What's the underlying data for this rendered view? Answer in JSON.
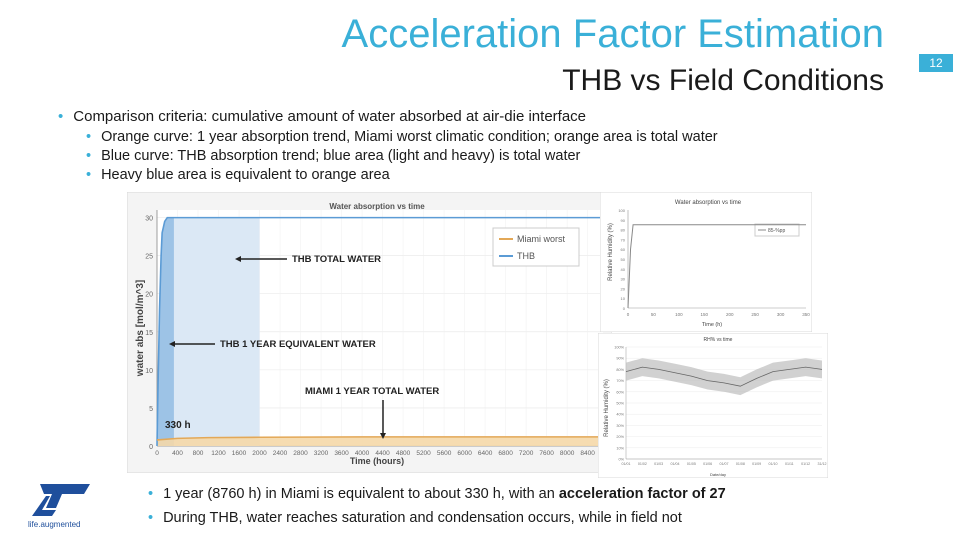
{
  "header": {
    "title": "Acceleration Factor Estimation",
    "subtitle": "THB vs Field Conditions",
    "page_number": "12"
  },
  "bullets": {
    "main": "Comparison criteria: cumulative amount of water absorbed at air-die interface",
    "sub": [
      "Orange curve: 1 year absorption trend, Miami worst climatic condition; orange area is total water",
      "Blue curve: THB absorption trend; blue area (light and heavy) is total water",
      "Heavy blue area is equivalent to orange area"
    ]
  },
  "bottom_bullets": {
    "line1_prefix": "1 year (8760 h) in Miami is equivalent to about 330 h, with an ",
    "line1_bold": "acceleration factor of 27",
    "line2": "During THB, water reaches saturation and condensation occurs, while in field not"
  },
  "logo": {
    "text": "life.augmented"
  },
  "colors": {
    "accent": "#3ab0d8",
    "thb_blue": "#5b9bd5",
    "miami_orange": "#e3a857"
  },
  "chart_data": [
    {
      "type": "line",
      "title": "Water absorption vs time",
      "xlabel": "Time (hours)",
      "ylabel": "water abs [mol/m^3]",
      "x_ticks": [
        "0",
        "400",
        "800",
        "1200",
        "1600",
        "2000",
        "2400",
        "2800",
        "3200",
        "3600",
        "4000",
        "4400",
        "4800",
        "5200",
        "5600",
        "6000",
        "6400",
        "6800",
        "7200",
        "7600",
        "8000",
        "8400"
      ],
      "y_ticks": [
        "0",
        "5",
        "10",
        "15",
        "20",
        "25",
        "30"
      ],
      "xlim": [
        0,
        8700
      ],
      "ylim": [
        0,
        31
      ],
      "legend": {
        "placement": "top-right",
        "entries": [
          "Miami worst",
          "THB"
        ]
      },
      "series": [
        {
          "name": "THB",
          "x": [
            0,
            20,
            50,
            80,
            100,
            150,
            200,
            8700
          ],
          "y": [
            0,
            8,
            18,
            25,
            28,
            29.5,
            30,
            30
          ]
        },
        {
          "name": "Miami worst",
          "x": [
            0,
            400,
            1000,
            2000,
            4000,
            6000,
            8760
          ],
          "y": [
            0.8,
            1.0,
            1.1,
            1.15,
            1.2,
            1.2,
            1.2
          ]
        }
      ],
      "annotations": {
        "thb_total": "THB TOTAL WATER",
        "thb_equivalent": "THB 1 YEAR EQUIVALENT  WATER",
        "miami_total": "MIAMI 1 YEAR TOTAL WATER",
        "hours_marker": "330 h"
      },
      "grid": true
    },
    {
      "type": "line",
      "title": "Water absorption vs time",
      "xlabel": "Time (h)",
      "ylabel": "Relative Humidity (%)",
      "legend": {
        "placement": "top-right",
        "entries": [
          "85-%pp"
        ]
      },
      "x_ticks": [
        "0",
        "50",
        "100",
        "150",
        "200",
        "250",
        "300",
        "350"
      ],
      "y_ticks": [
        "0",
        "10",
        "20",
        "30",
        "40",
        "50",
        "60",
        "70",
        "80",
        "90",
        "100"
      ],
      "xlim": [
        0,
        350
      ],
      "ylim": [
        0,
        100
      ],
      "series": [
        {
          "name": "85-%pp",
          "x": [
            0,
            5,
            10,
            350
          ],
          "y": [
            0,
            60,
            85,
            85
          ]
        }
      ]
    },
    {
      "type": "line",
      "title": "RH% vs time",
      "xlabel": "Date/day",
      "ylabel": "Relative Humidity (%)",
      "y_ticks": [
        "0%",
        "10%",
        "20%",
        "30%",
        "40%",
        "50%",
        "60%",
        "70%",
        "80%",
        "90%",
        "100%"
      ],
      "x_ticks": [
        "01/01",
        "01/02",
        "01/03",
        "01/04",
        "01/05",
        "01/06",
        "01/07",
        "01/08",
        "01/09",
        "01/10",
        "01/11",
        "01/12",
        "31/12"
      ],
      "ylim": [
        0,
        100
      ],
      "series": [
        {
          "name": "RH",
          "x": [
            0,
            1,
            2,
            3,
            4,
            5,
            6,
            7,
            8,
            9,
            10,
            11,
            12
          ],
          "y": [
            78,
            82,
            80,
            77,
            74,
            70,
            68,
            65,
            72,
            78,
            80,
            82,
            80
          ]
        }
      ],
      "grid": true
    }
  ]
}
